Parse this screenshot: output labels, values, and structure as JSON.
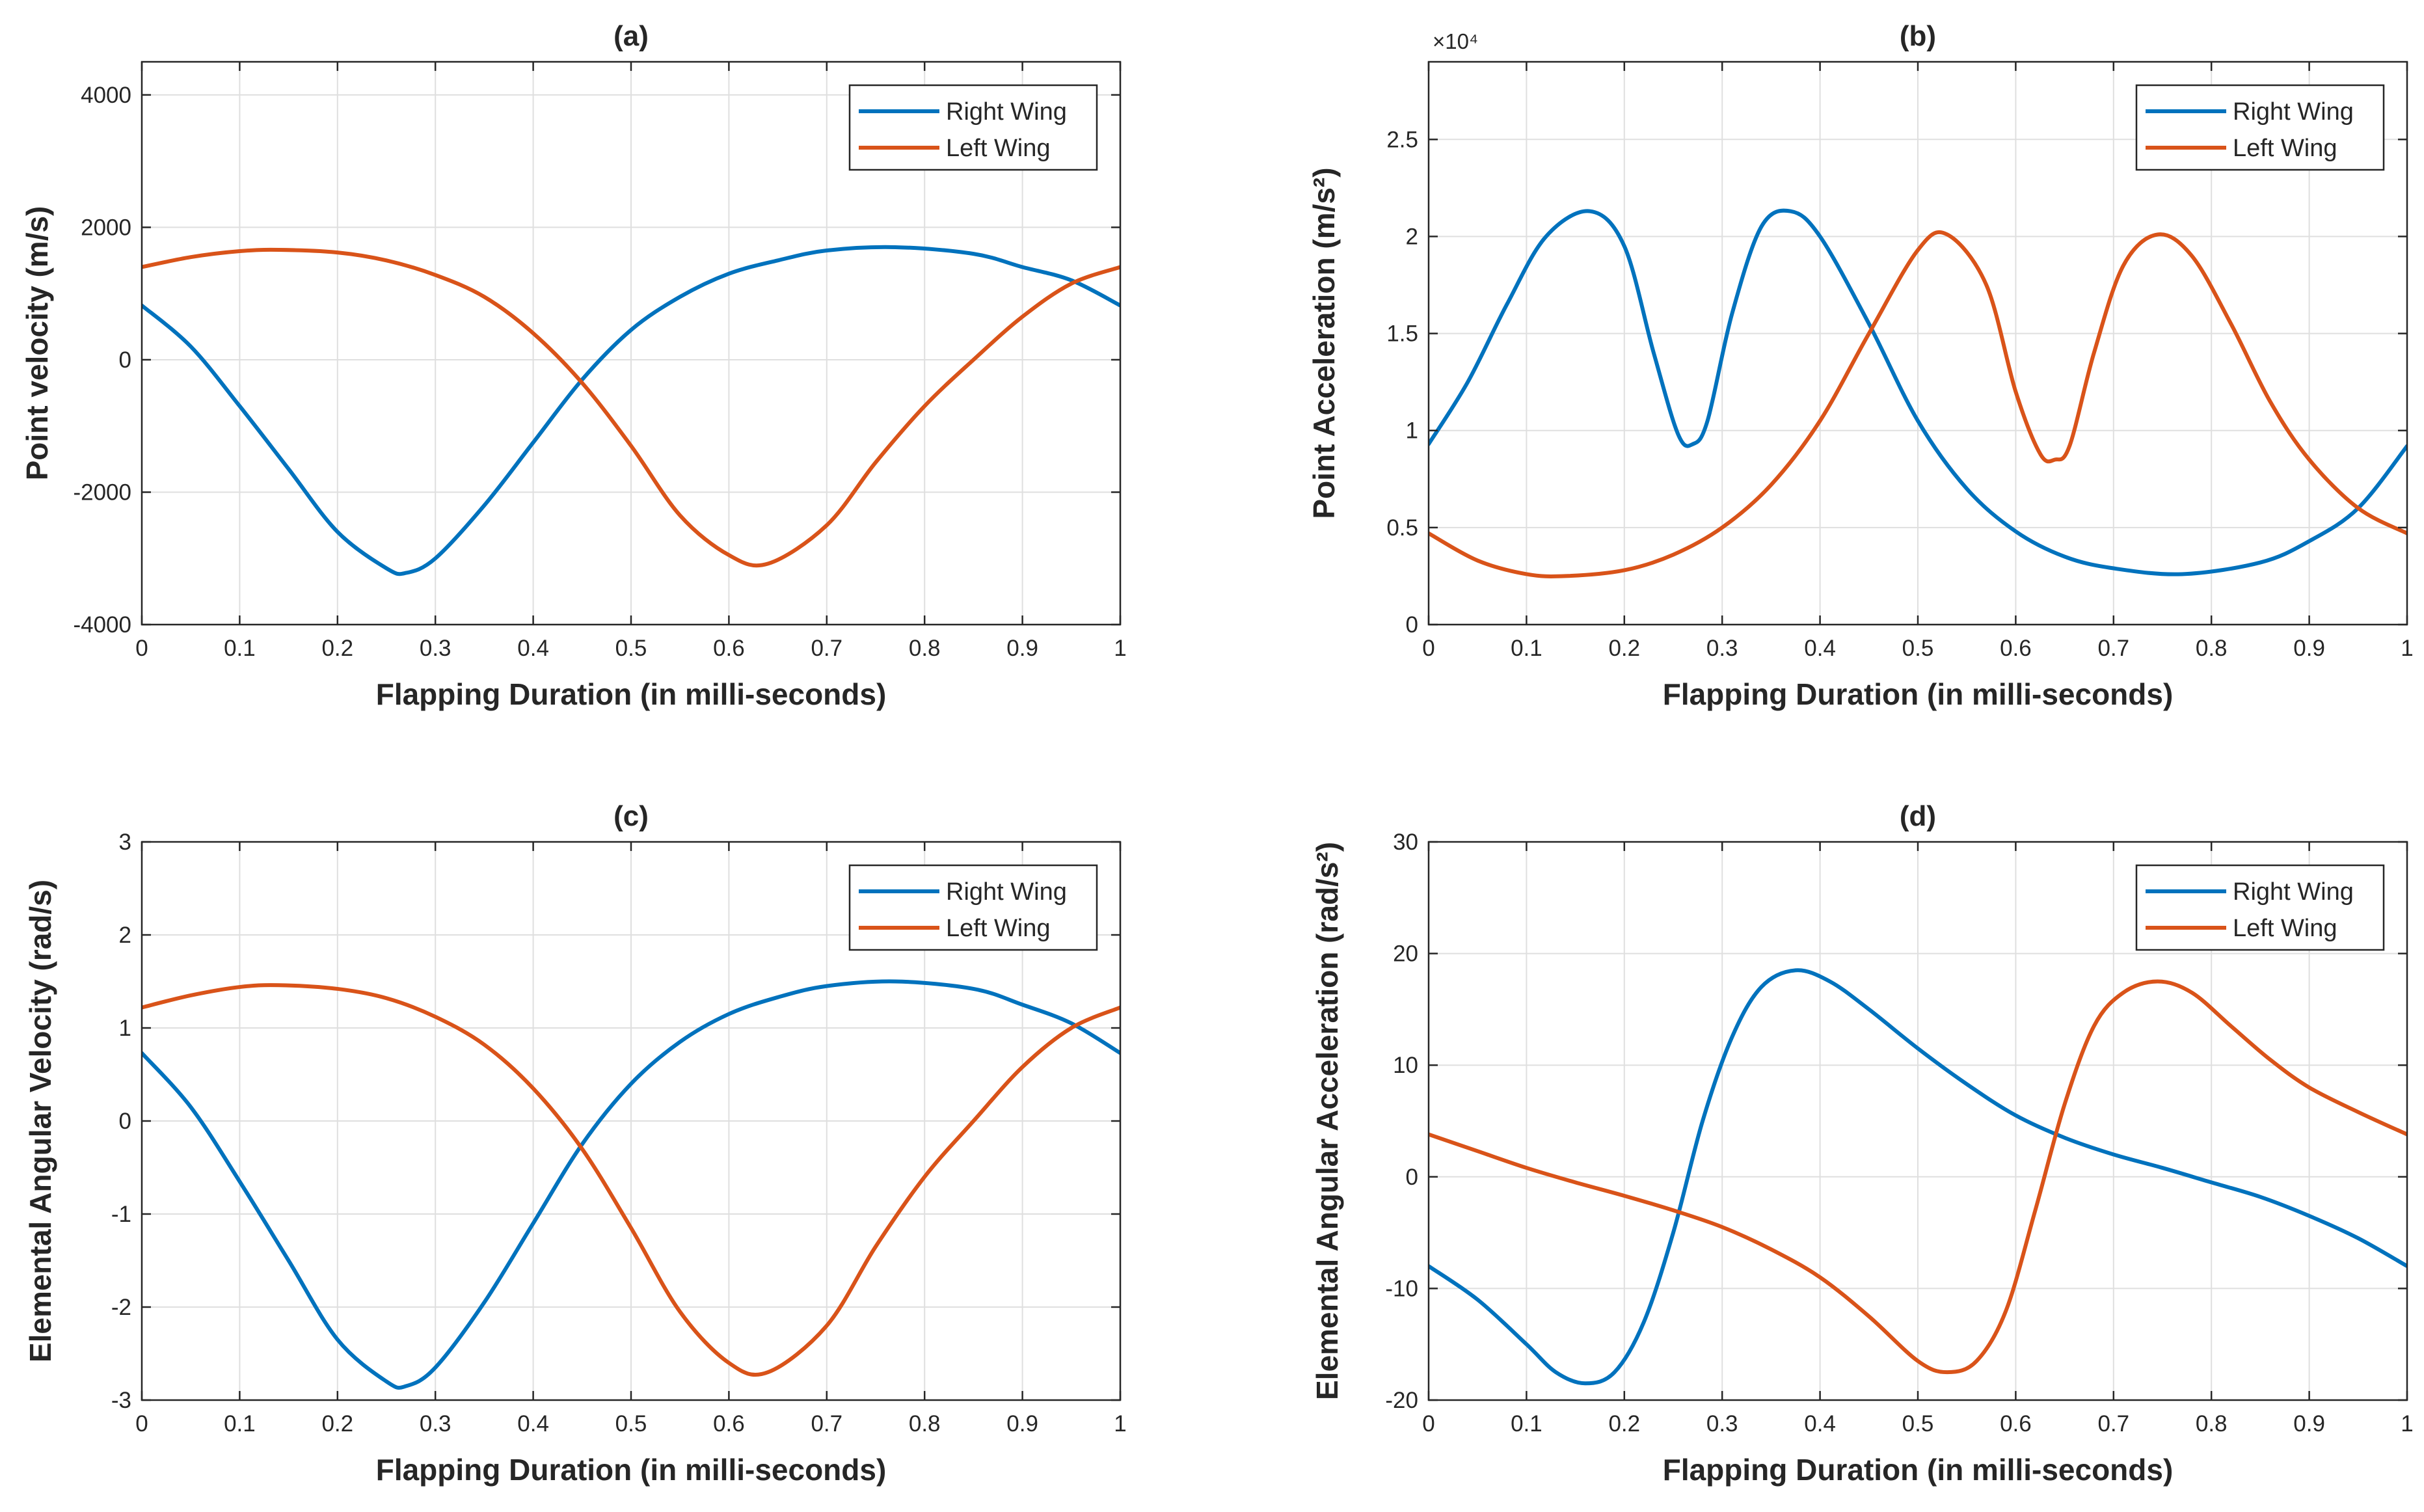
{
  "colors": {
    "right_wing": "#0072BD",
    "left_wing": "#D95319",
    "grid": "#DFDFDF",
    "axes": "#262626"
  },
  "chart_data": [
    {
      "panel": "a",
      "type": "line",
      "title": "(a)",
      "xlabel": "Flapping Duration (in milli-seconds)",
      "ylabel": "Point velocity (m/s)",
      "xlim": [
        0,
        1
      ],
      "ylim": [
        -4000,
        4500
      ],
      "xticks": [
        0,
        0.1,
        0.2,
        0.3,
        0.4,
        0.5,
        0.6,
        0.7,
        0.8,
        0.9,
        1
      ],
      "xtick_labels": [
        "0",
        "0.1",
        "0.2",
        "0.3",
        "0.4",
        "0.5",
        "0.6",
        "0.7",
        "0.8",
        "0.9",
        "1"
      ],
      "yticks": [
        -4000,
        -2000,
        0,
        2000,
        4000
      ],
      "ytick_labels": [
        "-4000",
        "-2000",
        "0",
        "2000",
        "4000"
      ],
      "grid": true,
      "legend_position": "top-right",
      "series": [
        {
          "name": "Right Wing",
          "x": [
            0,
            0.05,
            0.1,
            0.15,
            0.2,
            0.25,
            0.27,
            0.3,
            0.35,
            0.4,
            0.45,
            0.5,
            0.55,
            0.6,
            0.65,
            0.7,
            0.77,
            0.85,
            0.9,
            0.95,
            1
          ],
          "y": [
            820,
            200,
            -700,
            -1650,
            -2600,
            -3150,
            -3220,
            -3000,
            -2200,
            -1250,
            -300,
            450,
            950,
            1300,
            1500,
            1650,
            1700,
            1600,
            1400,
            1200,
            820
          ]
        },
        {
          "name": "Left Wing",
          "x": [
            0,
            0.05,
            0.1,
            0.14,
            0.2,
            0.25,
            0.3,
            0.35,
            0.4,
            0.45,
            0.5,
            0.55,
            0.6,
            0.64,
            0.7,
            0.75,
            0.8,
            0.85,
            0.9,
            0.95,
            1
          ],
          "y": [
            1400,
            1550,
            1640,
            1660,
            1620,
            1500,
            1280,
            950,
            400,
            -350,
            -1300,
            -2350,
            -2950,
            -3080,
            -2500,
            -1550,
            -700,
            0,
            650,
            1150,
            1400
          ]
        }
      ]
    },
    {
      "panel": "b",
      "type": "line",
      "title": "(b)",
      "xlabel": "Flapping Duration (in milli-seconds)",
      "ylabel": "Point Acceleration (m/s²)",
      "exponent_label": "×10⁴",
      "xlim": [
        0,
        1
      ],
      "ylim": [
        0,
        2.9
      ],
      "xticks": [
        0,
        0.1,
        0.2,
        0.3,
        0.4,
        0.5,
        0.6,
        0.7,
        0.8,
        0.9,
        1
      ],
      "xtick_labels": [
        "0",
        "0.1",
        "0.2",
        "0.3",
        "0.4",
        "0.5",
        "0.6",
        "0.7",
        "0.8",
        "0.9",
        "1"
      ],
      "yticks": [
        0,
        0.5,
        1,
        1.5,
        2,
        2.5
      ],
      "ytick_labels": [
        "0",
        "0.5",
        "1",
        "1.5",
        "2",
        "2.5"
      ],
      "grid": true,
      "legend_position": "top-right",
      "series": [
        {
          "name": "Right Wing",
          "x": [
            0,
            0.04,
            0.08,
            0.12,
            0.165,
            0.2,
            0.23,
            0.255,
            0.27,
            0.285,
            0.31,
            0.34,
            0.37,
            0.4,
            0.45,
            0.5,
            0.55,
            0.6,
            0.65,
            0.7,
            0.77,
            0.85,
            0.9,
            0.95,
            1
          ],
          "y": [
            0.93,
            1.25,
            1.65,
            2.0,
            2.13,
            1.95,
            1.4,
            0.98,
            0.93,
            1.05,
            1.6,
            2.05,
            2.13,
            2.0,
            1.55,
            1.05,
            0.7,
            0.48,
            0.35,
            0.29,
            0.26,
            0.32,
            0.43,
            0.6,
            0.92
          ]
        },
        {
          "name": "Left Wing",
          "x": [
            0,
            0.05,
            0.1,
            0.14,
            0.2,
            0.25,
            0.3,
            0.35,
            0.4,
            0.45,
            0.5,
            0.53,
            0.57,
            0.6,
            0.625,
            0.64,
            0.655,
            0.68,
            0.71,
            0.745,
            0.78,
            0.82,
            0.86,
            0.9,
            0.95,
            1
          ],
          "y": [
            0.47,
            0.33,
            0.26,
            0.25,
            0.28,
            0.36,
            0.5,
            0.72,
            1.05,
            1.5,
            1.93,
            2.01,
            1.75,
            1.2,
            0.88,
            0.85,
            0.92,
            1.4,
            1.85,
            2.01,
            1.9,
            1.55,
            1.15,
            0.85,
            0.6,
            0.47
          ]
        }
      ]
    },
    {
      "panel": "c",
      "type": "line",
      "title": "(c)",
      "xlabel": "Flapping Duration (in milli-seconds)",
      "ylabel": "Elemental Angular Velocity (rad/s)",
      "xlim": [
        0,
        1
      ],
      "ylim": [
        -3,
        3
      ],
      "xticks": [
        0,
        0.1,
        0.2,
        0.3,
        0.4,
        0.5,
        0.6,
        0.7,
        0.8,
        0.9,
        1
      ],
      "xtick_labels": [
        "0",
        "0.1",
        "0.2",
        "0.3",
        "0.4",
        "0.5",
        "0.6",
        "0.7",
        "0.8",
        "0.9",
        "1"
      ],
      "yticks": [
        -3,
        -2,
        -1,
        0,
        1,
        2,
        3
      ],
      "ytick_labels": [
        "-3",
        "-2",
        "-1",
        "0",
        "1",
        "2",
        "3"
      ],
      "grid": true,
      "legend_position": "top-right",
      "series": [
        {
          "name": "Right Wing",
          "x": [
            0,
            0.05,
            0.1,
            0.15,
            0.2,
            0.25,
            0.27,
            0.3,
            0.35,
            0.4,
            0.45,
            0.5,
            0.55,
            0.6,
            0.65,
            0.7,
            0.77,
            0.85,
            0.9,
            0.95,
            1
          ],
          "y": [
            0.73,
            0.15,
            -0.65,
            -1.5,
            -2.35,
            -2.8,
            -2.85,
            -2.65,
            -1.95,
            -1.1,
            -0.25,
            0.4,
            0.85,
            1.15,
            1.33,
            1.45,
            1.5,
            1.42,
            1.25,
            1.05,
            0.73
          ]
        },
        {
          "name": "Left Wing",
          "x": [
            0,
            0.05,
            0.1,
            0.14,
            0.2,
            0.25,
            0.3,
            0.35,
            0.4,
            0.45,
            0.5,
            0.55,
            0.6,
            0.64,
            0.7,
            0.75,
            0.8,
            0.85,
            0.9,
            0.95,
            1
          ],
          "y": [
            1.22,
            1.35,
            1.44,
            1.46,
            1.42,
            1.32,
            1.12,
            0.82,
            0.35,
            -0.3,
            -1.15,
            -2.05,
            -2.6,
            -2.7,
            -2.2,
            -1.35,
            -0.6,
            0.0,
            0.58,
            1.0,
            1.22
          ]
        }
      ]
    },
    {
      "panel": "d",
      "type": "line",
      "title": "(d)",
      "xlabel": "Flapping Duration (in milli-seconds)",
      "ylabel": "Elemental Angular Acceleration (rad/s²)",
      "xlim": [
        0,
        1
      ],
      "ylim": [
        -20,
        30
      ],
      "xticks": [
        0,
        0.1,
        0.2,
        0.3,
        0.4,
        0.5,
        0.6,
        0.7,
        0.8,
        0.9,
        1
      ],
      "xtick_labels": [
        "0",
        "0.1",
        "0.2",
        "0.3",
        "0.4",
        "0.5",
        "0.6",
        "0.7",
        "0.8",
        "0.9",
        "1"
      ],
      "yticks": [
        -20,
        -10,
        0,
        10,
        20,
        30
      ],
      "ytick_labels": [
        "-20",
        "-10",
        "0",
        "10",
        "20",
        "30"
      ],
      "grid": true,
      "legend_position": "top-right",
      "series": [
        {
          "name": "Right Wing",
          "x": [
            0,
            0.05,
            0.1,
            0.13,
            0.16,
            0.19,
            0.22,
            0.25,
            0.28,
            0.31,
            0.34,
            0.375,
            0.41,
            0.45,
            0.5,
            0.55,
            0.6,
            0.65,
            0.7,
            0.75,
            0.8,
            0.85,
            0.9,
            0.95,
            1
          ],
          "y": [
            -8,
            -11,
            -15,
            -17.5,
            -18.5,
            -17.5,
            -13,
            -5,
            5,
            12.5,
            17,
            18.5,
            17.5,
            15,
            11.5,
            8.3,
            5.5,
            3.5,
            2,
            0.8,
            -0.5,
            -1.8,
            -3.5,
            -5.5,
            -8
          ]
        },
        {
          "name": "Left Wing",
          "x": [
            0,
            0.05,
            0.1,
            0.15,
            0.2,
            0.25,
            0.3,
            0.35,
            0.4,
            0.45,
            0.5,
            0.53,
            0.56,
            0.59,
            0.62,
            0.65,
            0.68,
            0.71,
            0.745,
            0.78,
            0.82,
            0.86,
            0.9,
            0.95,
            1
          ],
          "y": [
            3.8,
            2.3,
            0.8,
            -0.5,
            -1.7,
            -3,
            -4.5,
            -6.5,
            -9,
            -12.5,
            -16.5,
            -17.5,
            -16.5,
            -12,
            -3,
            6.5,
            13.5,
            16.5,
            17.5,
            16.5,
            13.5,
            10.5,
            8,
            5.8,
            3.8
          ]
        }
      ]
    }
  ]
}
